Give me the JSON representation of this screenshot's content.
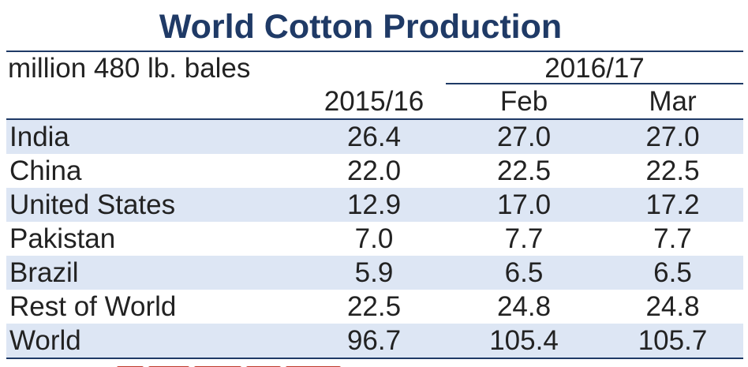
{
  "chart_data": {
    "type": "table",
    "title": "World Cotton Production",
    "units": "million 480 lb. bales",
    "group_header": "2016/17",
    "columns": [
      "2015/16",
      "Feb",
      "Mar"
    ],
    "rows": [
      {
        "name": "India",
        "values": [
          "26.4",
          "27.0",
          "27.0"
        ]
      },
      {
        "name": "China",
        "values": [
          "22.0",
          "22.5",
          "22.5"
        ]
      },
      {
        "name": "United States",
        "values": [
          "12.9",
          "17.0",
          "17.2"
        ]
      },
      {
        "name": "Pakistan",
        "values": [
          "7.0",
          "7.7",
          "7.7"
        ]
      },
      {
        "name": "Brazil",
        "values": [
          "5.9",
          "6.5",
          "6.5"
        ]
      },
      {
        "name": "Rest of World",
        "values": [
          "22.5",
          "24.8",
          "24.8"
        ]
      },
      {
        "name": "World",
        "values": [
          "96.7",
          "105.4",
          "105.7"
        ]
      }
    ]
  },
  "colors": {
    "title": "#1f3a66",
    "rule": "#1f3a66",
    "row_shade": "#dde6f4",
    "footnote_mark": "#c0392b"
  }
}
